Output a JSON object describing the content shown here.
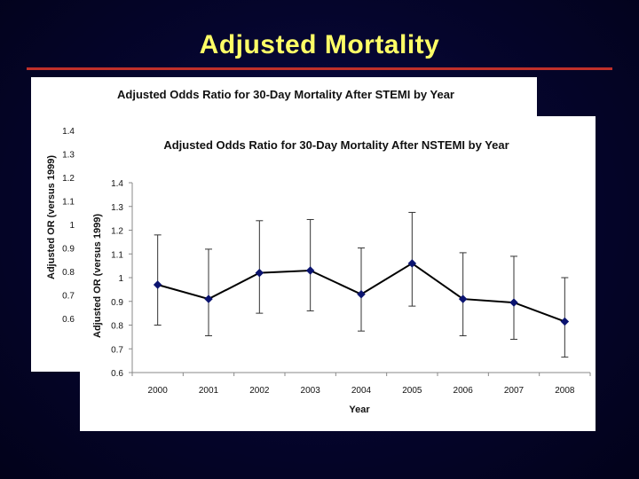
{
  "slide": {
    "title": "Adjusted Mortality"
  },
  "colors": {
    "background": "#05052c",
    "title": "#ffff66",
    "rule": "#c0302a",
    "marker": "#0b1470",
    "line": "#000000"
  },
  "chart_data": [
    {
      "type": "line",
      "title": "Adjusted Odds Ratio for 30-Day Mortality After STEMI by Year",
      "xlabel": "",
      "ylabel": "Adjusted OR (versus 1999)",
      "ylim": [
        0.6,
        1.4
      ],
      "yticks": [
        "0.6",
        "0.7",
        "0.8",
        "0.9",
        "1",
        "1.1",
        "1.2",
        "1.3",
        "1.4"
      ],
      "partially_hidden": true
    },
    {
      "type": "line",
      "title": "Adjusted Odds Ratio for 30-Day Mortality After NSTEMI by Year",
      "xlabel": "Year",
      "ylabel": "Adjusted OR (versus 1999)",
      "ylim": [
        0.6,
        1.4
      ],
      "yticks": [
        "0.6",
        "0.7",
        "0.8",
        "0.9",
        "1",
        "1.1",
        "1.2",
        "1.3",
        "1.4"
      ],
      "categories": [
        "2000",
        "2001",
        "2002",
        "2003",
        "2004",
        "2005",
        "2006",
        "2007",
        "2008"
      ],
      "series": [
        {
          "name": "Adjusted OR",
          "values": [
            0.97,
            0.91,
            1.02,
            1.03,
            0.93,
            1.06,
            0.91,
            0.895,
            0.815
          ],
          "lower": [
            0.8,
            0.755,
            0.85,
            0.86,
            0.775,
            0.88,
            0.755,
            0.74,
            0.665
          ],
          "upper": [
            1.18,
            1.12,
            1.24,
            1.245,
            1.125,
            1.275,
            1.105,
            1.09,
            1.0
          ]
        }
      ]
    }
  ]
}
